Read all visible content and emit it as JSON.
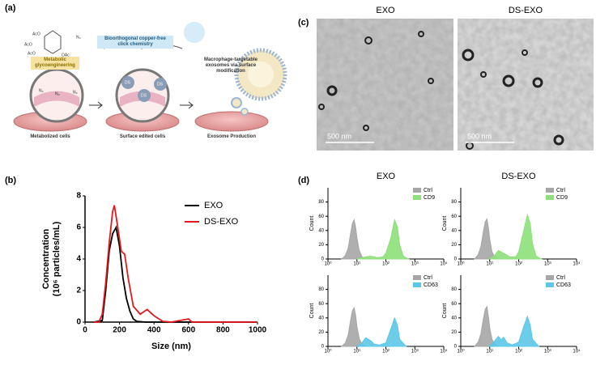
{
  "panel_labels": [
    "(a)",
    "(b)",
    "(c)",
    "(d)"
  ],
  "schematic": {
    "steps": [
      {
        "title": "Metabolic glycoengineering",
        "caption": "Metabolized cells"
      },
      {
        "title": "Bioorthogonal copper-free click chemistry",
        "caption": "Surface edited cells"
      },
      {
        "title": "Macrophage-targetable exosomes via surface modification",
        "caption": "Exosome Production"
      }
    ],
    "labels": [
      "AcO",
      "AcO",
      "AcO",
      "OAc",
      "N₃",
      "N₃",
      "N₃",
      "N₃",
      "DS",
      "DS",
      "DS"
    ]
  },
  "tem": {
    "images": [
      {
        "title": "EXO",
        "scale_bar": "500 nm"
      },
      {
        "title": "DS-EXO",
        "scale_bar": "500 nm"
      }
    ]
  },
  "chart_data": [
    {
      "type": "line",
      "xlabel": "Size (nm)",
      "ylabel": [
        "Concentration",
        "(10⁶ particles/mL)"
      ],
      "xlim": [
        0,
        1000
      ],
      "xticks": [
        0,
        200,
        400,
        600,
        800,
        1000
      ],
      "ylim": [
        0,
        8
      ],
      "yticks": [
        0,
        2,
        4,
        6,
        8
      ],
      "legend": "upper right",
      "series": [
        {
          "name": "EXO",
          "color": "#000000",
          "x": [
            50,
            100,
            120,
            140,
            160,
            180,
            200,
            220,
            240,
            260,
            280,
            300,
            350,
            400,
            600,
            1000
          ],
          "values": [
            0,
            0.1,
            2,
            4.5,
            5.6,
            6.0,
            4.8,
            2.8,
            1.5,
            0.7,
            0.2,
            0.05,
            0,
            0,
            0,
            0
          ]
        },
        {
          "name": "DS-EXO",
          "color": "#e31a1c",
          "x": [
            50,
            80,
            100,
            120,
            140,
            160,
            170,
            190,
            210,
            230,
            250,
            280,
            320,
            360,
            400,
            450,
            500,
            550,
            600,
            620,
            650,
            1000
          ],
          "values": [
            0,
            0,
            0.5,
            2.5,
            5.0,
            7.0,
            7.4,
            6.0,
            4.5,
            4.3,
            2.8,
            1.0,
            0.5,
            0.8,
            0.4,
            0.05,
            0,
            0.1,
            0.2,
            0,
            0,
            0
          ]
        }
      ]
    },
    {
      "type": "area",
      "title": "EXO",
      "ylabel": "Count",
      "log_x": true,
      "xlim": [
        1,
        10000
      ],
      "xticks": [
        {
          "value": 1,
          "label": "10⁰"
        },
        {
          "value": 10,
          "label": "10¹"
        },
        {
          "value": 100,
          "label": "10²"
        },
        {
          "value": 1000,
          "label": "10³"
        },
        {
          "value": 10000,
          "label": "10⁴"
        }
      ],
      "ylim": [
        0,
        100
      ],
      "yticks": [
        0,
        20,
        40,
        60,
        80
      ],
      "series": [
        {
          "name": "Ctrl",
          "color": "#a6a6a6",
          "x": [
            3,
            4,
            5,
            6,
            7,
            8,
            9,
            10,
            12,
            15,
            20
          ],
          "values": [
            0,
            5,
            15,
            35,
            50,
            55,
            45,
            30,
            12,
            3,
            0
          ]
        },
        {
          "name": "CD9",
          "color": "#8ee07a",
          "x": [
            10,
            20,
            30,
            50,
            80,
            100,
            150,
            200,
            250,
            300,
            400,
            600
          ],
          "values": [
            0,
            3,
            4,
            2,
            3,
            8,
            30,
            55,
            45,
            20,
            4,
            0
          ]
        }
      ]
    },
    {
      "type": "area",
      "title": "DS-EXO",
      "ylabel": "Count",
      "log_x": true,
      "xlim": [
        1,
        10000
      ],
      "xticks": [
        {
          "value": 1,
          "label": "10⁰"
        },
        {
          "value": 10,
          "label": "10¹"
        },
        {
          "value": 100,
          "label": "10²"
        },
        {
          "value": 1000,
          "label": "10³"
        },
        {
          "value": 10000,
          "label": "10⁴"
        }
      ],
      "ylim": [
        0,
        100
      ],
      "yticks": [
        0,
        20,
        40,
        60,
        80
      ],
      "series": [
        {
          "name": "Ctrl",
          "color": "#a6a6a6",
          "x": [
            3,
            4,
            5,
            6,
            7,
            8,
            9,
            10,
            12,
            15,
            20
          ],
          "values": [
            0,
            6,
            18,
            38,
            52,
            56,
            44,
            28,
            10,
            3,
            0
          ]
        },
        {
          "name": "CD9",
          "color": "#8ee07a",
          "x": [
            10,
            15,
            20,
            30,
            50,
            80,
            100,
            150,
            200,
            250,
            300,
            400,
            600
          ],
          "values": [
            0,
            5,
            12,
            8,
            3,
            3,
            10,
            40,
            62,
            50,
            22,
            4,
            0
          ]
        }
      ]
    },
    {
      "type": "area",
      "ylabel": "Count",
      "log_x": true,
      "xlim": [
        1,
        10000
      ],
      "xticks": [
        {
          "value": 1,
          "label": "10⁰"
        },
        {
          "value": 10,
          "label": "10¹"
        },
        {
          "value": 100,
          "label": "10²"
        },
        {
          "value": 1000,
          "label": "10³"
        },
        {
          "value": 10000,
          "label": "10⁴"
        }
      ],
      "ylim": [
        0,
        100
      ],
      "yticks": [
        0,
        20,
        40,
        60,
        80
      ],
      "series": [
        {
          "name": "Ctrl",
          "color": "#a6a6a6",
          "x": [
            3,
            4,
            5,
            6,
            7,
            8,
            9,
            10,
            12,
            15,
            20
          ],
          "values": [
            0,
            5,
            16,
            36,
            50,
            54,
            44,
            28,
            11,
            3,
            0
          ]
        },
        {
          "name": "CD63",
          "color": "#5bc8e8",
          "x": [
            10,
            15,
            20,
            30,
            40,
            60,
            100,
            150,
            200,
            250,
            300,
            500
          ],
          "values": [
            0,
            5,
            12,
            8,
            3,
            2,
            5,
            25,
            40,
            30,
            10,
            0
          ]
        }
      ]
    },
    {
      "type": "area",
      "ylabel": "Count",
      "log_x": true,
      "xlim": [
        1,
        10000
      ],
      "xticks": [
        {
          "value": 1,
          "label": "10⁰"
        },
        {
          "value": 10,
          "label": "10¹"
        },
        {
          "value": 100,
          "label": "10²"
        },
        {
          "value": 1000,
          "label": "10³"
        },
        {
          "value": 10000,
          "label": "10⁴"
        }
      ],
      "ylim": [
        0,
        100
      ],
      "yticks": [
        0,
        20,
        40,
        60,
        80
      ],
      "series": [
        {
          "name": "Ctrl",
          "color": "#a6a6a6",
          "x": [
            3,
            4,
            5,
            6,
            7,
            8,
            9,
            10,
            12,
            15,
            20
          ],
          "values": [
            0,
            6,
            18,
            38,
            52,
            56,
            42,
            26,
            10,
            3,
            0
          ]
        },
        {
          "name": "CD63",
          "color": "#5bc8e8",
          "x": [
            10,
            15,
            20,
            25,
            30,
            40,
            60,
            100,
            150,
            200,
            250,
            300,
            500
          ],
          "values": [
            0,
            8,
            14,
            9,
            13,
            5,
            2,
            6,
            28,
            42,
            30,
            10,
            0
          ]
        }
      ]
    }
  ]
}
